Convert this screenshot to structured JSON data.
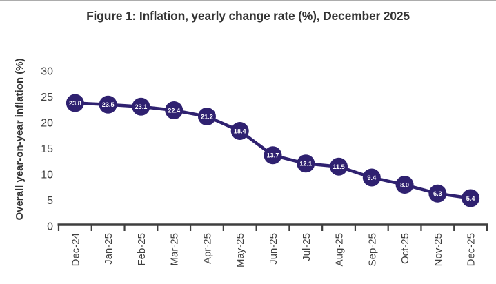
{
  "page": {
    "title": "Figure 1: Inflation, yearly change rate (%), December 2025"
  },
  "colors": {
    "series": "#2F2170",
    "axis": "#3f3f3f",
    "tick_text": "#404040",
    "point_label_text": "#ffffff",
    "title_text": "#333333",
    "top_border": "#acacac"
  },
  "chart_data": {
    "type": "line",
    "title": "Figure 1: Inflation, yearly change rate (%), December 2025",
    "categories": [
      "Dec-24",
      "Jan-25",
      "Feb-25",
      "Mar-25",
      "Apr-25",
      "May-25",
      "Jun-25",
      "Jul-25",
      "Aug-25",
      "Sep-25",
      "Oct-25",
      "Nov-25",
      "Dec-25"
    ],
    "values": [
      23.8,
      23.5,
      23.1,
      22.4,
      21.2,
      18.4,
      13.7,
      12.1,
      11.5,
      9.4,
      8.0,
      6.3,
      5.4
    ],
    "point_labels": [
      "23.8",
      "23.5",
      "23.1",
      "22.4",
      "21.2",
      "18.4",
      "13.7",
      "12.1",
      "11.5",
      "9.4",
      "8.0",
      "6.3",
      "5.4"
    ],
    "xlabel": "",
    "ylabel": "Overall year-on-year inflation (%)",
    "ylim": [
      0,
      30
    ],
    "yticks": [
      0,
      5,
      10,
      15,
      20,
      25,
      30
    ],
    "grid": false,
    "legend": false,
    "marker": "circle-with-value",
    "x_label_rotation": -90
  }
}
